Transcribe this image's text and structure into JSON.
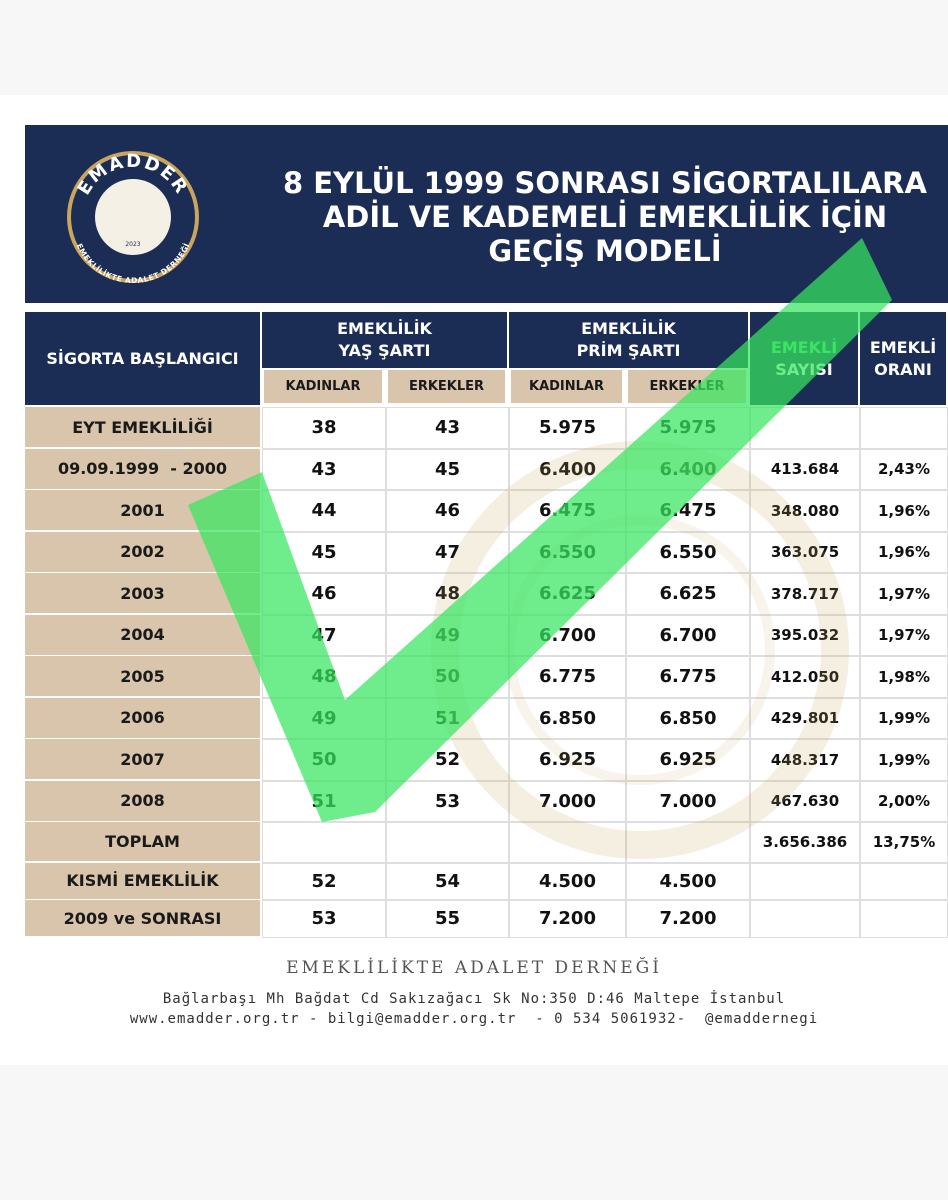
{
  "header": {
    "title_lines": [
      "8 EYLÜL 1999 SONRASI SİGORTALILARA",
      "ADİL VE KADEMELİ EMEKLİLİK İÇİN",
      "GEÇİŞ MODELİ"
    ],
    "logo": {
      "top": "EMADDER",
      "bottom": "EMEKLİLİKTE ADALET DERNEĞİ",
      "year": "2023"
    }
  },
  "table": {
    "row_header": "SİGORTA BAŞLANGICI",
    "groups": [
      {
        "lines": [
          "EMEKLİLİK",
          "YAŞ ŞARTI"
        ],
        "sub": [
          "KADINLAR",
          "ERKEKLER"
        ]
      },
      {
        "lines": [
          "EMEKLİLİK",
          "PRİM ŞARTI"
        ],
        "sub": [
          "KADINLAR",
          "ERKEKLER"
        ]
      }
    ],
    "extra": [
      {
        "lines": [
          "EMEKLİ",
          "SAYISI"
        ]
      },
      {
        "lines": [
          "EMEKLİ",
          "ORANI"
        ]
      }
    ],
    "rows": [
      [
        "EYT EMEKLİLİĞİ",
        "38",
        "43",
        "5.975",
        "5.975",
        null,
        null
      ],
      [
        "09.09.1999  - 2000",
        "43",
        "45",
        "6.400",
        "6.400",
        "413.684",
        "2,43%"
      ],
      [
        "2001",
        "44",
        "46",
        "6.475",
        "6.475",
        "348.080",
        "1,96%"
      ],
      [
        "2002",
        "45",
        "47",
        "6.550",
        "6.550",
        "363.075",
        "1,96%"
      ],
      [
        "2003",
        "46",
        "48",
        "6.625",
        "6.625",
        "378.717",
        "1,97%"
      ],
      [
        "2004",
        "47",
        "49",
        "6.700",
        "6.700",
        "395.032",
        "1,97%"
      ],
      [
        "2005",
        "48",
        "50",
        "6.775",
        "6.775",
        "412.050",
        "1,98%"
      ],
      [
        "2006",
        "49",
        "51",
        "6.850",
        "6.850",
        "429.801",
        "1,99%"
      ],
      [
        "2007",
        "50",
        "52",
        "6.925",
        "6.925",
        "448.317",
        "1,99%"
      ],
      [
        "2008",
        "51",
        "53",
        "7.000",
        "7.000",
        "467.630",
        "2,00%"
      ],
      [
        "TOPLAM",
        null,
        null,
        null,
        null,
        "3.656.386",
        "13,75%"
      ],
      [
        "KISMİ EMEKLİLİK",
        "52",
        "54",
        "4.500",
        "4.500",
        null,
        null
      ],
      [
        "2009 ve SONRASI",
        "53",
        "55",
        "7.200",
        "7.200",
        null,
        null
      ]
    ]
  },
  "footer": {
    "org": "EMEKLİLİKTE ADALET DERNEĞİ",
    "address": "Bağlarbaşı Mh Bağdat Cd Sakızağacı Sk No:350 D:46 Maltepe İstanbul",
    "contact": "www.emadder.org.tr - bilgi@emadder.org.tr  - 0 534 5061932-  @emaddernegi"
  }
}
